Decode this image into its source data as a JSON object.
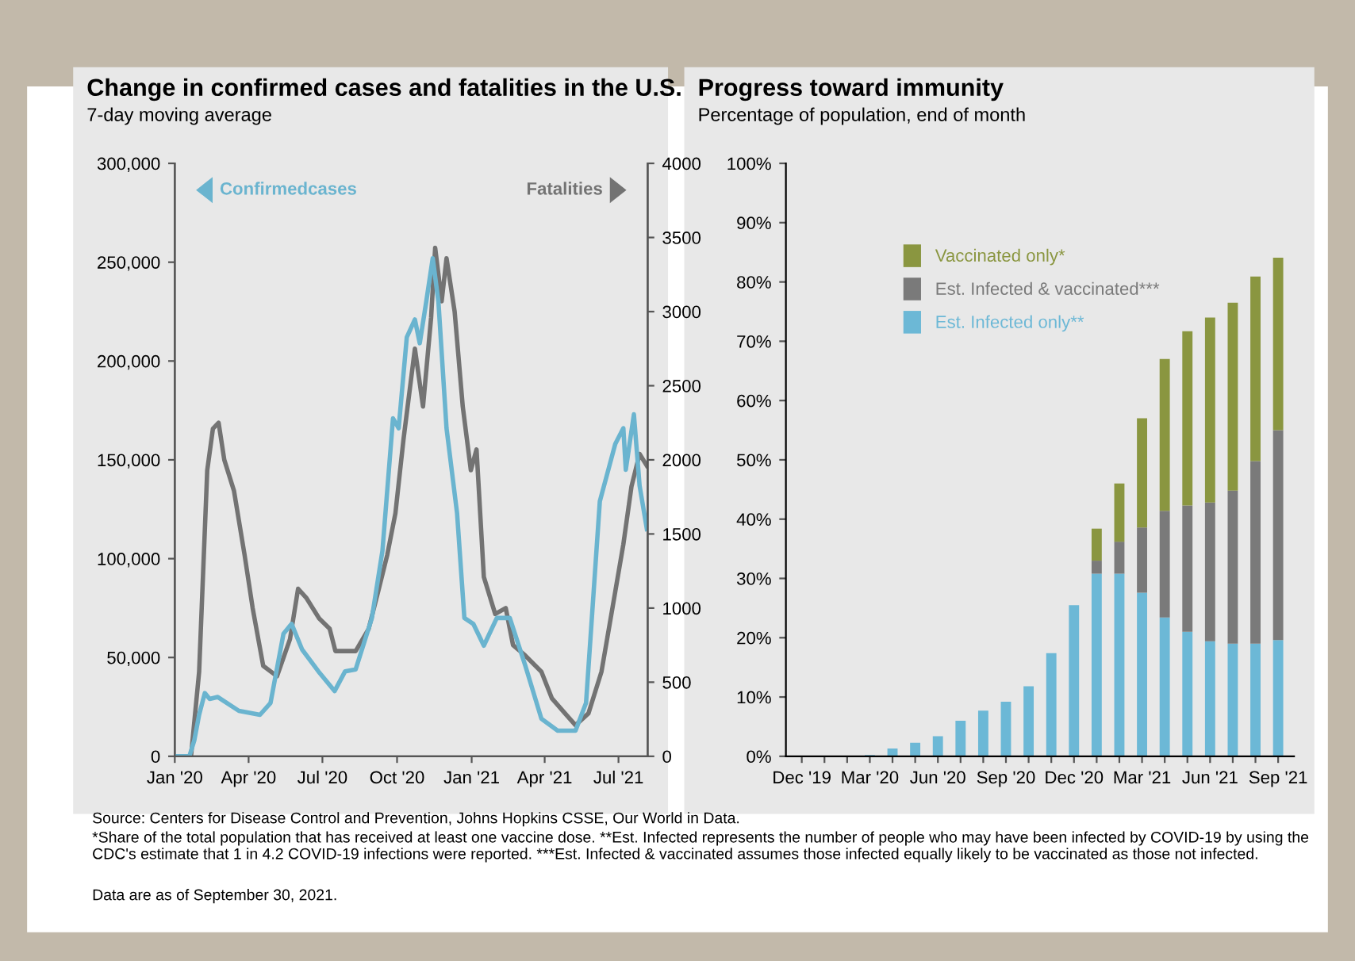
{
  "chart_data": [
    {
      "type": "line",
      "title": "Change in confirmed cases and fatalities in the U.S.",
      "subtitle": "7-day moving average",
      "xlim": [
        "2020-01-01",
        "2021-08-06"
      ],
      "xticks": [
        {
          "value": "2020-01-01",
          "label": "Jan '20"
        },
        {
          "value": "2020-04-01",
          "label": "Apr '20"
        },
        {
          "value": "2020-07-01",
          "label": "Jul '20"
        },
        {
          "value": "2020-10-01",
          "label": "Oct '20"
        },
        {
          "value": "2021-01-01",
          "label": "Jan '21"
        },
        {
          "value": "2021-04-01",
          "label": "Apr '21"
        },
        {
          "value": "2021-07-01",
          "label": "Jul '21"
        }
      ],
      "ylim": [
        0,
        300000
      ],
      "yticks": [
        0,
        {
          "value": 50000,
          "label": "50,000"
        },
        {
          "value": 100000,
          "label": "100,000"
        },
        {
          "value": 150000,
          "label": "150,000"
        },
        {
          "value": 200000,
          "label": "200,000"
        },
        {
          "value": 250000,
          "label": "250,000"
        },
        {
          "value": 300000,
          "label": "300,000"
        }
      ],
      "y2lim": [
        0,
        4000
      ],
      "y2ticks": [
        0,
        500,
        1000,
        1500,
        2000,
        2500,
        3000,
        3500,
        4000
      ],
      "grid": false,
      "legend": "top",
      "marker": "none",
      "line_style": "solid",
      "series": [
        {
          "name": "Confirmedcases",
          "color": "#6ab4cf",
          "axis": "y",
          "x": [
            "2020-01-01",
            "2020-01-19",
            "2020-01-25",
            "2020-01-31",
            "2020-02-07",
            "2020-02-13",
            "2020-02-23",
            "2020-03-20",
            "2020-04-15",
            "2020-04-28",
            "2020-05-14",
            "2020-05-24",
            "2020-06-06",
            "2020-06-26",
            "2020-07-16",
            "2020-07-29",
            "2020-08-11",
            "2020-08-31",
            "2020-09-13",
            "2020-09-26",
            "2020-10-03",
            "2020-10-13",
            "2020-10-23",
            "2020-10-29",
            "2020-11-06",
            "2020-11-14",
            "2020-11-21",
            "2020-12-01",
            "2020-12-14",
            "2020-12-23",
            "2021-01-03",
            "2021-01-16",
            "2021-02-01",
            "2021-02-17",
            "2021-03-08",
            "2021-03-28",
            "2021-04-17",
            "2021-05-09",
            "2021-05-22",
            "2021-06-08",
            "2021-06-27",
            "2021-07-07",
            "2021-07-10",
            "2021-07-20",
            "2021-07-27",
            "2021-08-05"
          ],
          "values": [
            0,
            0,
            8000,
            21000,
            32000,
            29000,
            30000,
            23000,
            21000,
            27000,
            62000,
            67000,
            54000,
            43000,
            33000,
            43000,
            44000,
            70000,
            104000,
            171000,
            166000,
            212000,
            221000,
            209000,
            230000,
            252000,
            230000,
            166000,
            123000,
            70000,
            67000,
            56000,
            70000,
            70000,
            46000,
            19000,
            13000,
            13000,
            27000,
            129000,
            158000,
            166000,
            145000,
            173000,
            137000,
            115000
          ]
        },
        {
          "name": "Fatalities",
          "color": "#737373",
          "axis": "y2",
          "x": [
            "2020-01-01",
            "2020-01-21",
            "2020-01-31",
            "2020-02-10",
            "2020-02-17",
            "2020-02-24",
            "2020-03-02",
            "2020-03-14",
            "2020-03-27",
            "2020-04-06",
            "2020-04-19",
            "2020-05-06",
            "2020-05-22",
            "2020-06-01",
            "2020-06-11",
            "2020-06-27",
            "2020-07-10",
            "2020-07-17",
            "2020-07-29",
            "2020-08-11",
            "2020-08-27",
            "2020-09-09",
            "2020-09-19",
            "2020-09-29",
            "2020-10-09",
            "2020-10-23",
            "2020-11-02",
            "2020-11-12",
            "2020-11-17",
            "2020-11-25",
            "2020-12-01",
            "2020-12-11",
            "2020-12-21",
            "2020-12-31",
            "2021-01-07",
            "2021-01-16",
            "2021-01-30",
            "2021-02-12",
            "2021-02-21",
            "2021-03-08",
            "2021-03-28",
            "2021-04-10",
            "2021-04-26",
            "2021-05-09",
            "2021-05-25",
            "2021-06-10",
            "2021-06-27",
            "2021-07-07",
            "2021-07-17",
            "2021-07-27",
            "2021-08-05"
          ],
          "values": [
            0,
            0,
            570,
            1930,
            2210,
            2250,
            2000,
            1790,
            1360,
            1000,
            610,
            540,
            790,
            1130,
            1070,
            930,
            860,
            710,
            710,
            710,
            860,
            1140,
            1360,
            1640,
            2140,
            2750,
            2360,
            2960,
            3430,
            3070,
            3360,
            3000,
            2360,
            1930,
            2070,
            1210,
            960,
            1000,
            750,
            680,
            570,
            390,
            290,
            210,
            290,
            570,
            1110,
            1430,
            1820,
            2040,
            1960
          ]
        }
      ]
    },
    {
      "type": "bar",
      "title": "Progress toward immunity",
      "subtitle": "Percentage of population, end of month",
      "categories": [
        "Dec '19",
        null,
        null,
        "Mar '20",
        null,
        null,
        "Jun '20",
        null,
        null,
        "Sep '20",
        null,
        null,
        "Dec '20",
        null,
        null,
        "Mar '21",
        null,
        null,
        "Jun '21",
        null,
        null,
        "Sep '21"
      ],
      "stacked": true,
      "ylim": [
        0,
        100
      ],
      "yticks": [
        {
          "value": 0,
          "label": "0%"
        },
        {
          "value": 10,
          "label": "10%"
        },
        {
          "value": 20,
          "label": "20%"
        },
        {
          "value": 30,
          "label": "30%"
        },
        {
          "value": 40,
          "label": "40%"
        },
        {
          "value": 50,
          "label": "50%"
        },
        {
          "value": 60,
          "label": "60%"
        },
        {
          "value": 70,
          "label": "70%"
        },
        {
          "value": 80,
          "label": "80%"
        },
        {
          "value": 90,
          "label": "90%"
        },
        {
          "value": 100,
          "label": "100%"
        }
      ],
      "grid": false,
      "legend": "top left",
      "series": [
        {
          "name": "Est. Infected only**",
          "color": "#6cb8d6",
          "values": [
            0,
            0,
            0,
            0.2,
            1.3,
            2.3,
            3.4,
            6.0,
            7.7,
            9.2,
            11.8,
            17.4,
            25.5,
            30.8,
            30.8,
            27.6,
            23.4,
            21.0,
            19.4,
            19.0,
            19.0,
            19.6
          ]
        },
        {
          "name": "Est. Infected & vaccinated***",
          "color": "#7a7a7a",
          "values": [
            0,
            0,
            0,
            0,
            0,
            0,
            0,
            0,
            0,
            0,
            0,
            0,
            0,
            2.2,
            5.4,
            11.0,
            18.0,
            21.3,
            23.4,
            25.8,
            30.8,
            35.4
          ]
        },
        {
          "name": "Vaccinated only*",
          "color": "#8a9640",
          "values": [
            0,
            0,
            0,
            0,
            0,
            0,
            0,
            0,
            0,
            0,
            0,
            0,
            0,
            5.4,
            9.8,
            18.4,
            25.6,
            29.4,
            31.2,
            31.7,
            31.1,
            29.1
          ]
        }
      ],
      "annotations": [
        "Source: Centers for Disease Control and Prevention, Johns Hopkins CSSE, Our World in Data.",
        "*Share of the total population that has received at least one vaccine dose. **Est. Infected represents the number of people who may have been infected by COVID-19 by using the CDC's estimate that 1 in 4.2 COVID-19 infections were reported. ***Est. Infected & vaccinated assumes those infected equally likely to be vaccinated as those not infected.",
        "Data are as of September 30, 2021."
      ]
    }
  ]
}
